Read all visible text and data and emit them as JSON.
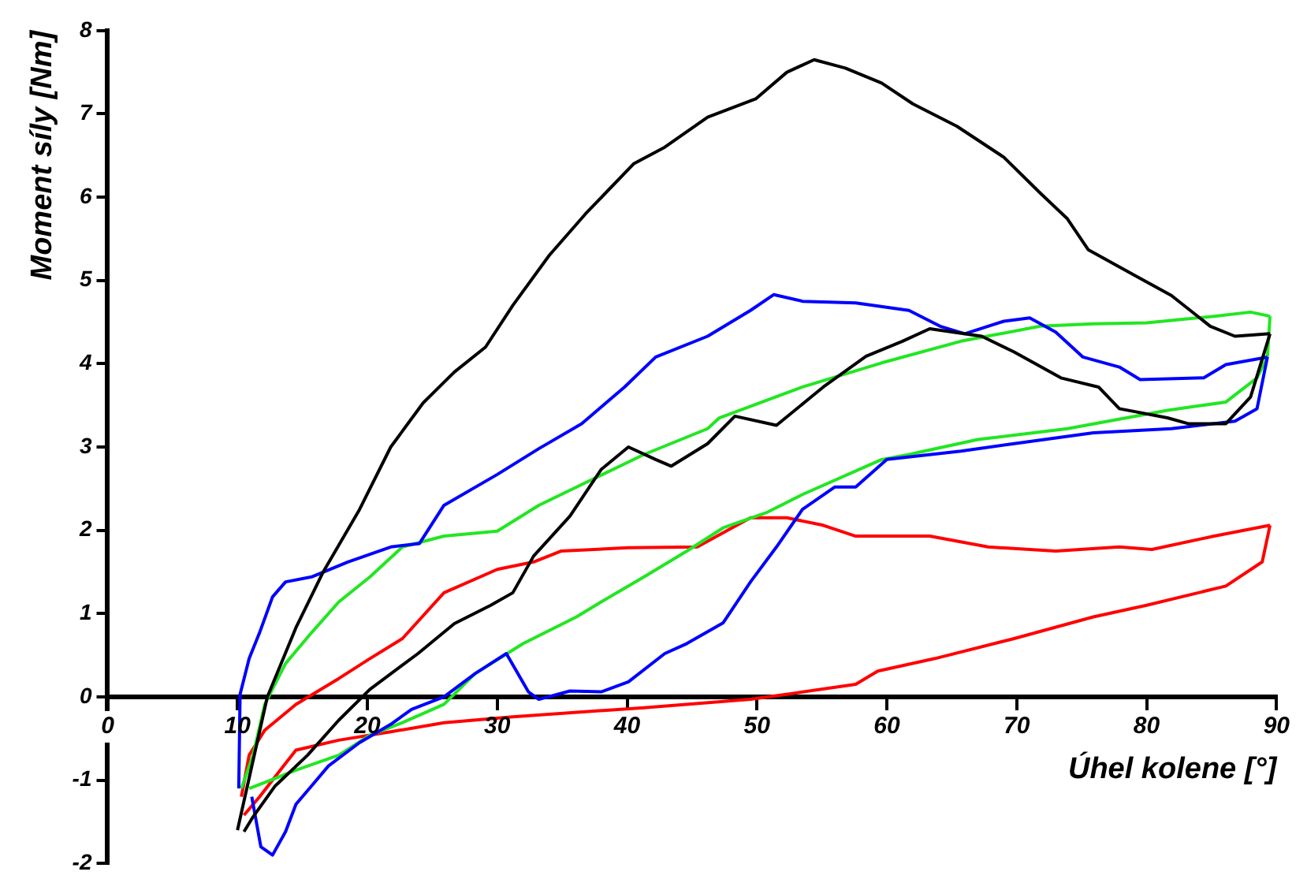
{
  "chart_data": {
    "type": "line",
    "xlabel": "Úhel kolene [°]",
    "ylabel": "Moment síly [Nm]",
    "xlim": [
      0,
      90
    ],
    "xticks": [
      0,
      10,
      20,
      30,
      40,
      50,
      60,
      70,
      80,
      90
    ],
    "ylim": [
      -2,
      8
    ],
    "yticks": [
      -2,
      -1,
      0,
      1,
      2,
      3,
      4,
      5,
      6,
      7,
      8
    ],
    "grid": false,
    "legend": false,
    "marker": "none",
    "line_style": "solid",
    "series": [
      {
        "color": "#000000",
        "x": [
          10,
          12.3,
          14.5,
          16.6,
          19.4,
          21.8,
          24.3,
          26.7,
          29.1,
          31.2,
          34,
          36.8,
          40.5,
          42.9,
          46.2,
          49.9,
          52.3,
          54.4,
          56.8,
          59.6,
          62,
          65.4,
          69,
          71.8,
          73.9,
          75.5,
          79.1,
          81.9,
          84.9,
          86.8,
          89.5
        ],
        "values": [
          -1.6,
          0,
          0.83,
          1.5,
          2.25,
          3.0,
          3.53,
          3.9,
          4.2,
          4.7,
          5.3,
          5.8,
          6.4,
          6.6,
          6.96,
          7.18,
          7.5,
          7.65,
          7.55,
          7.37,
          7.12,
          6.85,
          6.48,
          6.05,
          5.74,
          5.37,
          5.06,
          4.82,
          4.45,
          4.33,
          4.36
        ]
      },
      {
        "color": "#000000",
        "x": [
          10.5,
          11.2,
          12.9,
          15.4,
          17.8,
          20.2,
          23.9,
          26.7,
          29.5,
          31.2,
          32.8,
          35.6,
          38,
          40.1,
          42.2,
          43.4,
          46.2,
          48.3,
          51.5,
          55.1,
          58.4,
          61.2,
          63.3,
          67.3,
          69.8,
          73.4,
          76.3,
          77.9,
          81.6,
          83.2,
          86.1,
          88,
          89.5
        ],
        "values": [
          -1.62,
          -1.44,
          -1.07,
          -0.7,
          -0.28,
          0.09,
          0.52,
          0.88,
          1.1,
          1.25,
          1.69,
          2.17,
          2.73,
          3.0,
          2.85,
          2.77,
          3.04,
          3.37,
          3.26,
          3.72,
          4.09,
          4.27,
          4.42,
          4.33,
          4.14,
          3.83,
          3.72,
          3.46,
          3.35,
          3.28,
          3.28,
          3.6,
          4.36
        ]
      },
      {
        "color": "#0000ff",
        "x": [
          10.1,
          10.2,
          10.9,
          11.7,
          12.7,
          13.7,
          15.7,
          18.5,
          21.8,
          24,
          25.9,
          30,
          33.2,
          36.5,
          39.8,
          42.2,
          46.2,
          49.5,
          51.3,
          53.5,
          57.6,
          61.7,
          64.1,
          66,
          69,
          71,
          73,
          75.1,
          77.9,
          79.5,
          84.4,
          86.1,
          89.3
        ],
        "values": [
          -1.1,
          0.03,
          0.46,
          0.77,
          1.2,
          1.38,
          1.44,
          1.62,
          1.8,
          1.84,
          2.3,
          2.67,
          2.98,
          3.28,
          3.72,
          4.08,
          4.33,
          4.64,
          4.83,
          4.75,
          4.73,
          4.64,
          4.45,
          4.36,
          4.51,
          4.55,
          4.38,
          4.08,
          3.96,
          3.81,
          3.83,
          3.99,
          4.08
        ]
      },
      {
        "color": "#0000ff",
        "x": [
          11.1,
          11.8,
          12.7,
          13.7,
          14.5,
          15.7,
          17,
          19.4,
          21.8,
          23.4,
          25.9,
          28.3,
          30.7,
          32.4,
          33.2,
          35.6,
          38,
          40.1,
          42.9,
          44.6,
          47.4,
          49.5,
          51.5,
          53.5,
          56,
          57.6,
          60,
          65.7,
          69.8,
          75.9,
          81.9,
          86.8,
          88.5,
          89.3
        ],
        "values": [
          -1.2,
          -1.8,
          -1.9,
          -1.62,
          -1.29,
          -1.07,
          -0.83,
          -0.55,
          -0.33,
          -0.15,
          0,
          0.28,
          0.52,
          0.06,
          -0.03,
          0.07,
          0.06,
          0.18,
          0.52,
          0.64,
          0.89,
          1.38,
          1.8,
          2.25,
          2.52,
          2.52,
          2.85,
          2.95,
          3.04,
          3.17,
          3.22,
          3.31,
          3.46,
          4.08
        ]
      },
      {
        "color": "#22e622",
        "x": [
          10.3,
          11.2,
          12.1,
          13.7,
          15.7,
          17.8,
          20.2,
          22.7,
          25.9,
          30,
          33.2,
          37.3,
          41.3,
          46.2,
          47.1,
          53.5,
          59.6,
          65.7,
          71.8,
          75.9,
          80,
          85.2,
          88,
          89.5
        ],
        "values": [
          -1.1,
          -0.7,
          -0.09,
          0.4,
          0.77,
          1.14,
          1.44,
          1.8,
          1.93,
          1.99,
          2.3,
          2.61,
          2.91,
          3.22,
          3.35,
          3.72,
          4.01,
          4.27,
          4.45,
          4.48,
          4.49,
          4.57,
          4.62,
          4.57
        ]
      },
      {
        "color": "#22e622",
        "x": [
          10.9,
          12.4,
          14.5,
          17.8,
          20.2,
          22.7,
          25.9,
          28.3,
          32,
          36.1,
          38,
          41.3,
          44.6,
          47.4,
          50.7,
          53.5,
          59.6,
          61.7,
          67,
          73.9,
          81.6,
          86.1,
          88.5,
          89.3,
          89.5
        ],
        "values": [
          -1.1,
          -1.01,
          -0.88,
          -0.7,
          -0.46,
          -0.31,
          -0.09,
          0.28,
          0.64,
          0.96,
          1.14,
          1.44,
          1.75,
          2.03,
          2.21,
          2.43,
          2.85,
          2.91,
          3.09,
          3.22,
          3.44,
          3.54,
          3.83,
          4.08,
          4.57
        ]
      },
      {
        "color": "#ff0000",
        "x": [
          10.3,
          10.9,
          12.1,
          14.5,
          17.8,
          20.2,
          22.7,
          25.9,
          30,
          32.8,
          34.9,
          40.1,
          45.4,
          49.5,
          52.3,
          55.1,
          57.6,
          63.3,
          67.8,
          73,
          77.9,
          80.4,
          85.2,
          89.5
        ],
        "values": [
          -1.2,
          -0.7,
          -0.4,
          -0.09,
          0.22,
          0.46,
          0.7,
          1.25,
          1.53,
          1.62,
          1.75,
          1.79,
          1.8,
          2.15,
          2.15,
          2.06,
          1.93,
          1.93,
          1.8,
          1.75,
          1.8,
          1.77,
          1.93,
          2.06
        ]
      },
      {
        "color": "#ff0000",
        "x": [
          10.5,
          11.7,
          12.9,
          14.5,
          17.8,
          21.8,
          25.9,
          31.2,
          41.3,
          49.5,
          52.7,
          57.6,
          59.3,
          63.7,
          69.8,
          75.9,
          80,
          86.1,
          88.9,
          89.5
        ],
        "values": [
          -1.42,
          -1.2,
          -0.96,
          -0.64,
          -0.52,
          -0.42,
          -0.31,
          -0.24,
          -0.13,
          -0.03,
          0.04,
          0.15,
          0.31,
          0.46,
          0.7,
          0.96,
          1.1,
          1.33,
          1.62,
          2.06
        ]
      }
    ]
  }
}
